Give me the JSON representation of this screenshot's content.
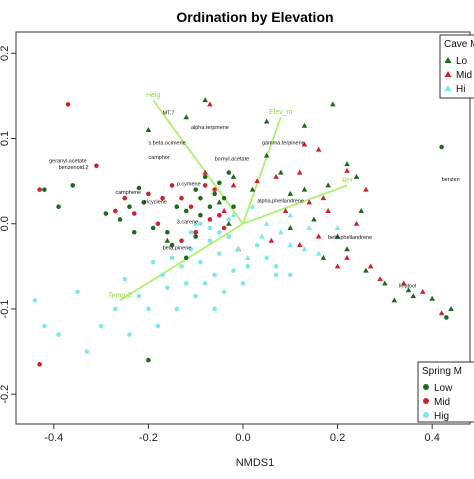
{
  "chart_data": {
    "type": "scatter",
    "title": "Ordination by Elevation",
    "xlabel": "NMDS1",
    "ylabel": "",
    "xlim": [
      -0.48,
      0.48
    ],
    "ylim": [
      -0.235,
      0.225
    ],
    "xticks": [
      -0.4,
      -0.2,
      0.0,
      0.2,
      0.4
    ],
    "xtick_labels": [
      "-0.4",
      "-0.2",
      "0.0",
      "0.2",
      "0.4"
    ],
    "yticks": [
      -0.2,
      -0.1,
      0.0,
      0.1,
      0.2
    ],
    "ytick_labels": [
      "-0.2",
      "-0.1",
      "0.0",
      "0.1",
      "0.2"
    ],
    "grid": false,
    "colors": {
      "low": "#1e6b1e",
      "mid": "#cc2233",
      "high": "#7fe8e8",
      "vector": "#b6f07a",
      "vector_label": "#8fd84a"
    },
    "legends": [
      {
        "title": "Cave M",
        "placement": "top-right",
        "marker": "triangle",
        "entries": [
          {
            "label": "Lo",
            "color": "#1e6b1e"
          },
          {
            "label": "Mid",
            "color": "#cc2233"
          },
          {
            "label": "Hi",
            "color": "#7fe8e8"
          }
        ]
      },
      {
        "title": "Spring M",
        "placement": "bottom-right",
        "marker": "circle",
        "entries": [
          {
            "label": "Low",
            "color": "#1e6b1e"
          },
          {
            "label": "Mid",
            "color": "#cc2233"
          },
          {
            "label": "Hig",
            "color": "#7fe8e8"
          }
        ]
      }
    ],
    "vectors": [
      {
        "label": "Heig",
        "x": -0.19,
        "y": 0.145
      },
      {
        "label": "Elev_m",
        "x": 0.08,
        "y": 0.125
      },
      {
        "label": "RH",
        "x": 0.22,
        "y": 0.045
      },
      {
        "label": "Temp.C",
        "x": -0.26,
        "y": -0.09
      }
    ],
    "compounds": [
      {
        "label": "MT.7",
        "x": -0.17,
        "y": 0.128
      },
      {
        "label": "alpha.terpinene",
        "x": -0.11,
        "y": 0.111
      },
      {
        "label": "s.beta.ocimene",
        "x": -0.2,
        "y": 0.093
      },
      {
        "label": "geranyl.acetate",
        "x": -0.41,
        "y": 0.072
      },
      {
        "label": "benzenoid.2",
        "x": -0.39,
        "y": 0.064
      },
      {
        "label": "gamma.terpinene",
        "x": 0.04,
        "y": 0.093
      },
      {
        "label": "bornyl.acetate",
        "x": -0.06,
        "y": 0.074
      },
      {
        "label": "camphor",
        "x": -0.2,
        "y": 0.076
      },
      {
        "label": "p.cymene",
        "x": -0.14,
        "y": 0.045
      },
      {
        "label": "camphene",
        "x": -0.27,
        "y": 0.035
      },
      {
        "label": "tricyclene",
        "x": -0.21,
        "y": 0.024
      },
      {
        "label": "alpha.phellandrene",
        "x": 0.03,
        "y": 0.025
      },
      {
        "label": "3.carene",
        "x": -0.14,
        "y": 0.0
      },
      {
        "label": "beta.pinene",
        "x": -0.17,
        "y": -0.03
      },
      {
        "label": "beta.phellandrene",
        "x": 0.18,
        "y": -0.018
      },
      {
        "label": "linalool",
        "x": 0.33,
        "y": -0.075
      },
      {
        "label": "benzen",
        "x": 0.42,
        "y": 0.05
      }
    ],
    "series": [
      {
        "group": "Cave",
        "level": "Low",
        "color": "#1e6b1e",
        "marker": "triangle",
        "points": [
          [
            -0.2,
            0.11
          ],
          [
            -0.12,
            0.125
          ],
          [
            -0.08,
            0.145
          ],
          [
            0.05,
            0.12
          ],
          [
            0.13,
            0.115
          ],
          [
            0.19,
            0.14
          ],
          [
            0.05,
            0.08
          ],
          [
            0.08,
            0.06
          ],
          [
            -0.02,
            0.055
          ],
          [
            0.22,
            0.07
          ],
          [
            0.24,
            0.055
          ],
          [
            0.18,
            0.045
          ],
          [
            0.1,
            0.035
          ],
          [
            0.02,
            0.04
          ],
          [
            -0.05,
            0.025
          ],
          [
            0.15,
            0.005
          ],
          [
            0.25,
            0.015
          ],
          [
            0.1,
            -0.005
          ],
          [
            0.2,
            -0.015
          ],
          [
            0.17,
            -0.04
          ],
          [
            0.26,
            -0.055
          ],
          [
            0.3,
            -0.07
          ],
          [
            0.35,
            -0.078
          ],
          [
            0.36,
            -0.085
          ],
          [
            0.4,
            -0.088
          ],
          [
            0.44,
            -0.1
          ],
          [
            0.32,
            -0.09
          ],
          [
            0.22,
            -0.03
          ],
          [
            0.13,
            0.04
          ],
          [
            -0.03,
            0.0
          ],
          [
            -0.16,
            -0.02
          ]
        ]
      },
      {
        "group": "Cave",
        "level": "Mid",
        "color": "#cc2233",
        "marker": "triangle",
        "points": [
          [
            -0.07,
            0.14
          ],
          [
            0.13,
            0.093
          ],
          [
            0.16,
            0.087
          ],
          [
            0.03,
            0.05
          ],
          [
            0.07,
            0.055
          ],
          [
            0.12,
            0.06
          ],
          [
            0.22,
            0.062
          ],
          [
            0.26,
            0.04
          ],
          [
            0.14,
            0.025
          ],
          [
            0.17,
            0.03
          ],
          [
            0.18,
            0.015
          ],
          [
            0.24,
            0.0
          ],
          [
            0.16,
            -0.015
          ],
          [
            0.12,
            -0.025
          ],
          [
            0.22,
            -0.04
          ],
          [
            0.27,
            -0.05
          ],
          [
            0.29,
            -0.065
          ],
          [
            0.34,
            -0.07
          ],
          [
            0.38,
            -0.08
          ],
          [
            0.42,
            -0.105
          ],
          [
            0.2,
            -0.05
          ],
          [
            0.06,
            -0.02
          ],
          [
            -0.01,
            -0.03
          ],
          [
            -0.04,
            0.015
          ],
          [
            -0.08,
            0.06
          ],
          [
            -0.02,
            0.045
          ],
          [
            0.09,
            0.015
          ]
        ]
      },
      {
        "group": "Cave",
        "level": "High",
        "color": "#7fe8e8",
        "marker": "triangle",
        "points": [
          [
            0.02,
            0.02
          ],
          [
            0.05,
            0.0
          ],
          [
            0.08,
            -0.01
          ],
          [
            0.1,
            -0.025
          ],
          [
            0.13,
            -0.03
          ],
          [
            0.16,
            -0.035
          ],
          [
            0.1,
            0.01
          ],
          [
            0.04,
            -0.015
          ],
          [
            -0.02,
            0.01
          ],
          [
            0.01,
            -0.04
          ],
          [
            0.14,
            -0.005
          ],
          [
            0.2,
            -0.005
          ],
          [
            -0.1,
            0.0
          ]
        ]
      },
      {
        "group": "Spring",
        "level": "Low",
        "color": "#1e6b1e",
        "marker": "circle",
        "points": [
          [
            -0.42,
            0.04
          ],
          [
            -0.39,
            0.02
          ],
          [
            -0.36,
            0.045
          ],
          [
            -0.22,
            0.042
          ],
          [
            -0.24,
            0.02
          ],
          [
            -0.26,
            0.005
          ],
          [
            -0.21,
            0.025
          ],
          [
            -0.23,
            -0.01
          ],
          [
            -0.19,
            -0.005
          ],
          [
            -0.14,
            0.02
          ],
          [
            -0.12,
            0.015
          ],
          [
            -0.1,
            0.04
          ],
          [
            -0.08,
            0.055
          ],
          [
            -0.06,
            0.035
          ],
          [
            -0.04,
            0.03
          ],
          [
            -0.05,
            0.048
          ],
          [
            -0.02,
            0.02
          ],
          [
            -0.16,
            -0.01
          ],
          [
            -0.15,
            -0.025
          ],
          [
            -0.1,
            -0.015
          ],
          [
            -0.12,
            -0.04
          ],
          [
            -0.03,
            0.06
          ],
          [
            -0.09,
            0.03
          ],
          [
            -0.07,
            0.02
          ],
          [
            0.42,
            0.09
          ],
          [
            0.43,
            -0.11
          ],
          [
            -0.2,
            -0.16
          ],
          [
            -0.29,
            0.012
          ],
          [
            -0.09,
            0.01
          ]
        ]
      },
      {
        "group": "Spring",
        "level": "Mid",
        "color": "#cc2233",
        "marker": "circle",
        "points": [
          [
            -0.37,
            0.14
          ],
          [
            -0.43,
            0.04
          ],
          [
            -0.31,
            0.068
          ],
          [
            -0.25,
            0.03
          ],
          [
            -0.27,
            0.015
          ],
          [
            -0.2,
            0.035
          ],
          [
            -0.15,
            0.045
          ],
          [
            -0.13,
            0.03
          ],
          [
            -0.18,
            0.0
          ],
          [
            -0.11,
            0.02
          ],
          [
            -0.08,
            0.045
          ],
          [
            -0.06,
            0.04
          ],
          [
            -0.1,
            -0.01
          ],
          [
            -0.05,
            0.01
          ],
          [
            -0.04,
            -0.005
          ],
          [
            -0.13,
            -0.02
          ],
          [
            -0.43,
            -0.165
          ],
          [
            -0.07,
            0.005
          ],
          [
            -0.17,
            0.03
          ],
          [
            -0.23,
            0.012
          ]
        ]
      },
      {
        "group": "Spring",
        "level": "High",
        "color": "#7fe8e8",
        "marker": "circle",
        "points": [
          [
            -0.44,
            -0.09
          ],
          [
            -0.42,
            -0.12
          ],
          [
            -0.39,
            -0.13
          ],
          [
            -0.35,
            -0.08
          ],
          [
            -0.33,
            -0.15
          ],
          [
            -0.3,
            -0.12
          ],
          [
            -0.27,
            -0.1
          ],
          [
            -0.25,
            -0.065
          ],
          [
            -0.22,
            -0.085
          ],
          [
            -0.19,
            -0.045
          ],
          [
            -0.17,
            -0.06
          ],
          [
            -0.15,
            -0.04
          ],
          [
            -0.13,
            -0.05
          ],
          [
            -0.11,
            -0.03
          ],
          [
            -0.09,
            -0.045
          ],
          [
            -0.07,
            -0.02
          ],
          [
            -0.05,
            -0.035
          ],
          [
            -0.03,
            -0.015
          ],
          [
            -0.01,
            -0.03
          ],
          [
            0.01,
            -0.05
          ],
          [
            0.03,
            -0.025
          ],
          [
            -0.06,
            -0.06
          ],
          [
            -0.08,
            -0.07
          ],
          [
            -0.1,
            -0.085
          ],
          [
            -0.12,
            -0.07
          ],
          [
            -0.16,
            -0.075
          ],
          [
            -0.2,
            -0.1
          ],
          [
            -0.04,
            -0.08
          ],
          [
            0.0,
            -0.07
          ],
          [
            -0.02,
            -0.055
          ],
          [
            0.05,
            -0.04
          ],
          [
            0.07,
            -0.06
          ],
          [
            -0.14,
            -0.1
          ],
          [
            -0.06,
            -0.1
          ],
          [
            -0.24,
            -0.13
          ],
          [
            -0.18,
            -0.12
          ],
          [
            -0.11,
            -0.01
          ],
          [
            -0.09,
            0.0
          ],
          [
            -0.07,
            -0.005
          ],
          [
            -0.05,
            -0.01
          ],
          [
            -0.03,
            0.005
          ],
          [
            0.07,
            -0.05
          ],
          [
            0.1,
            -0.06
          ]
        ]
      }
    ]
  }
}
